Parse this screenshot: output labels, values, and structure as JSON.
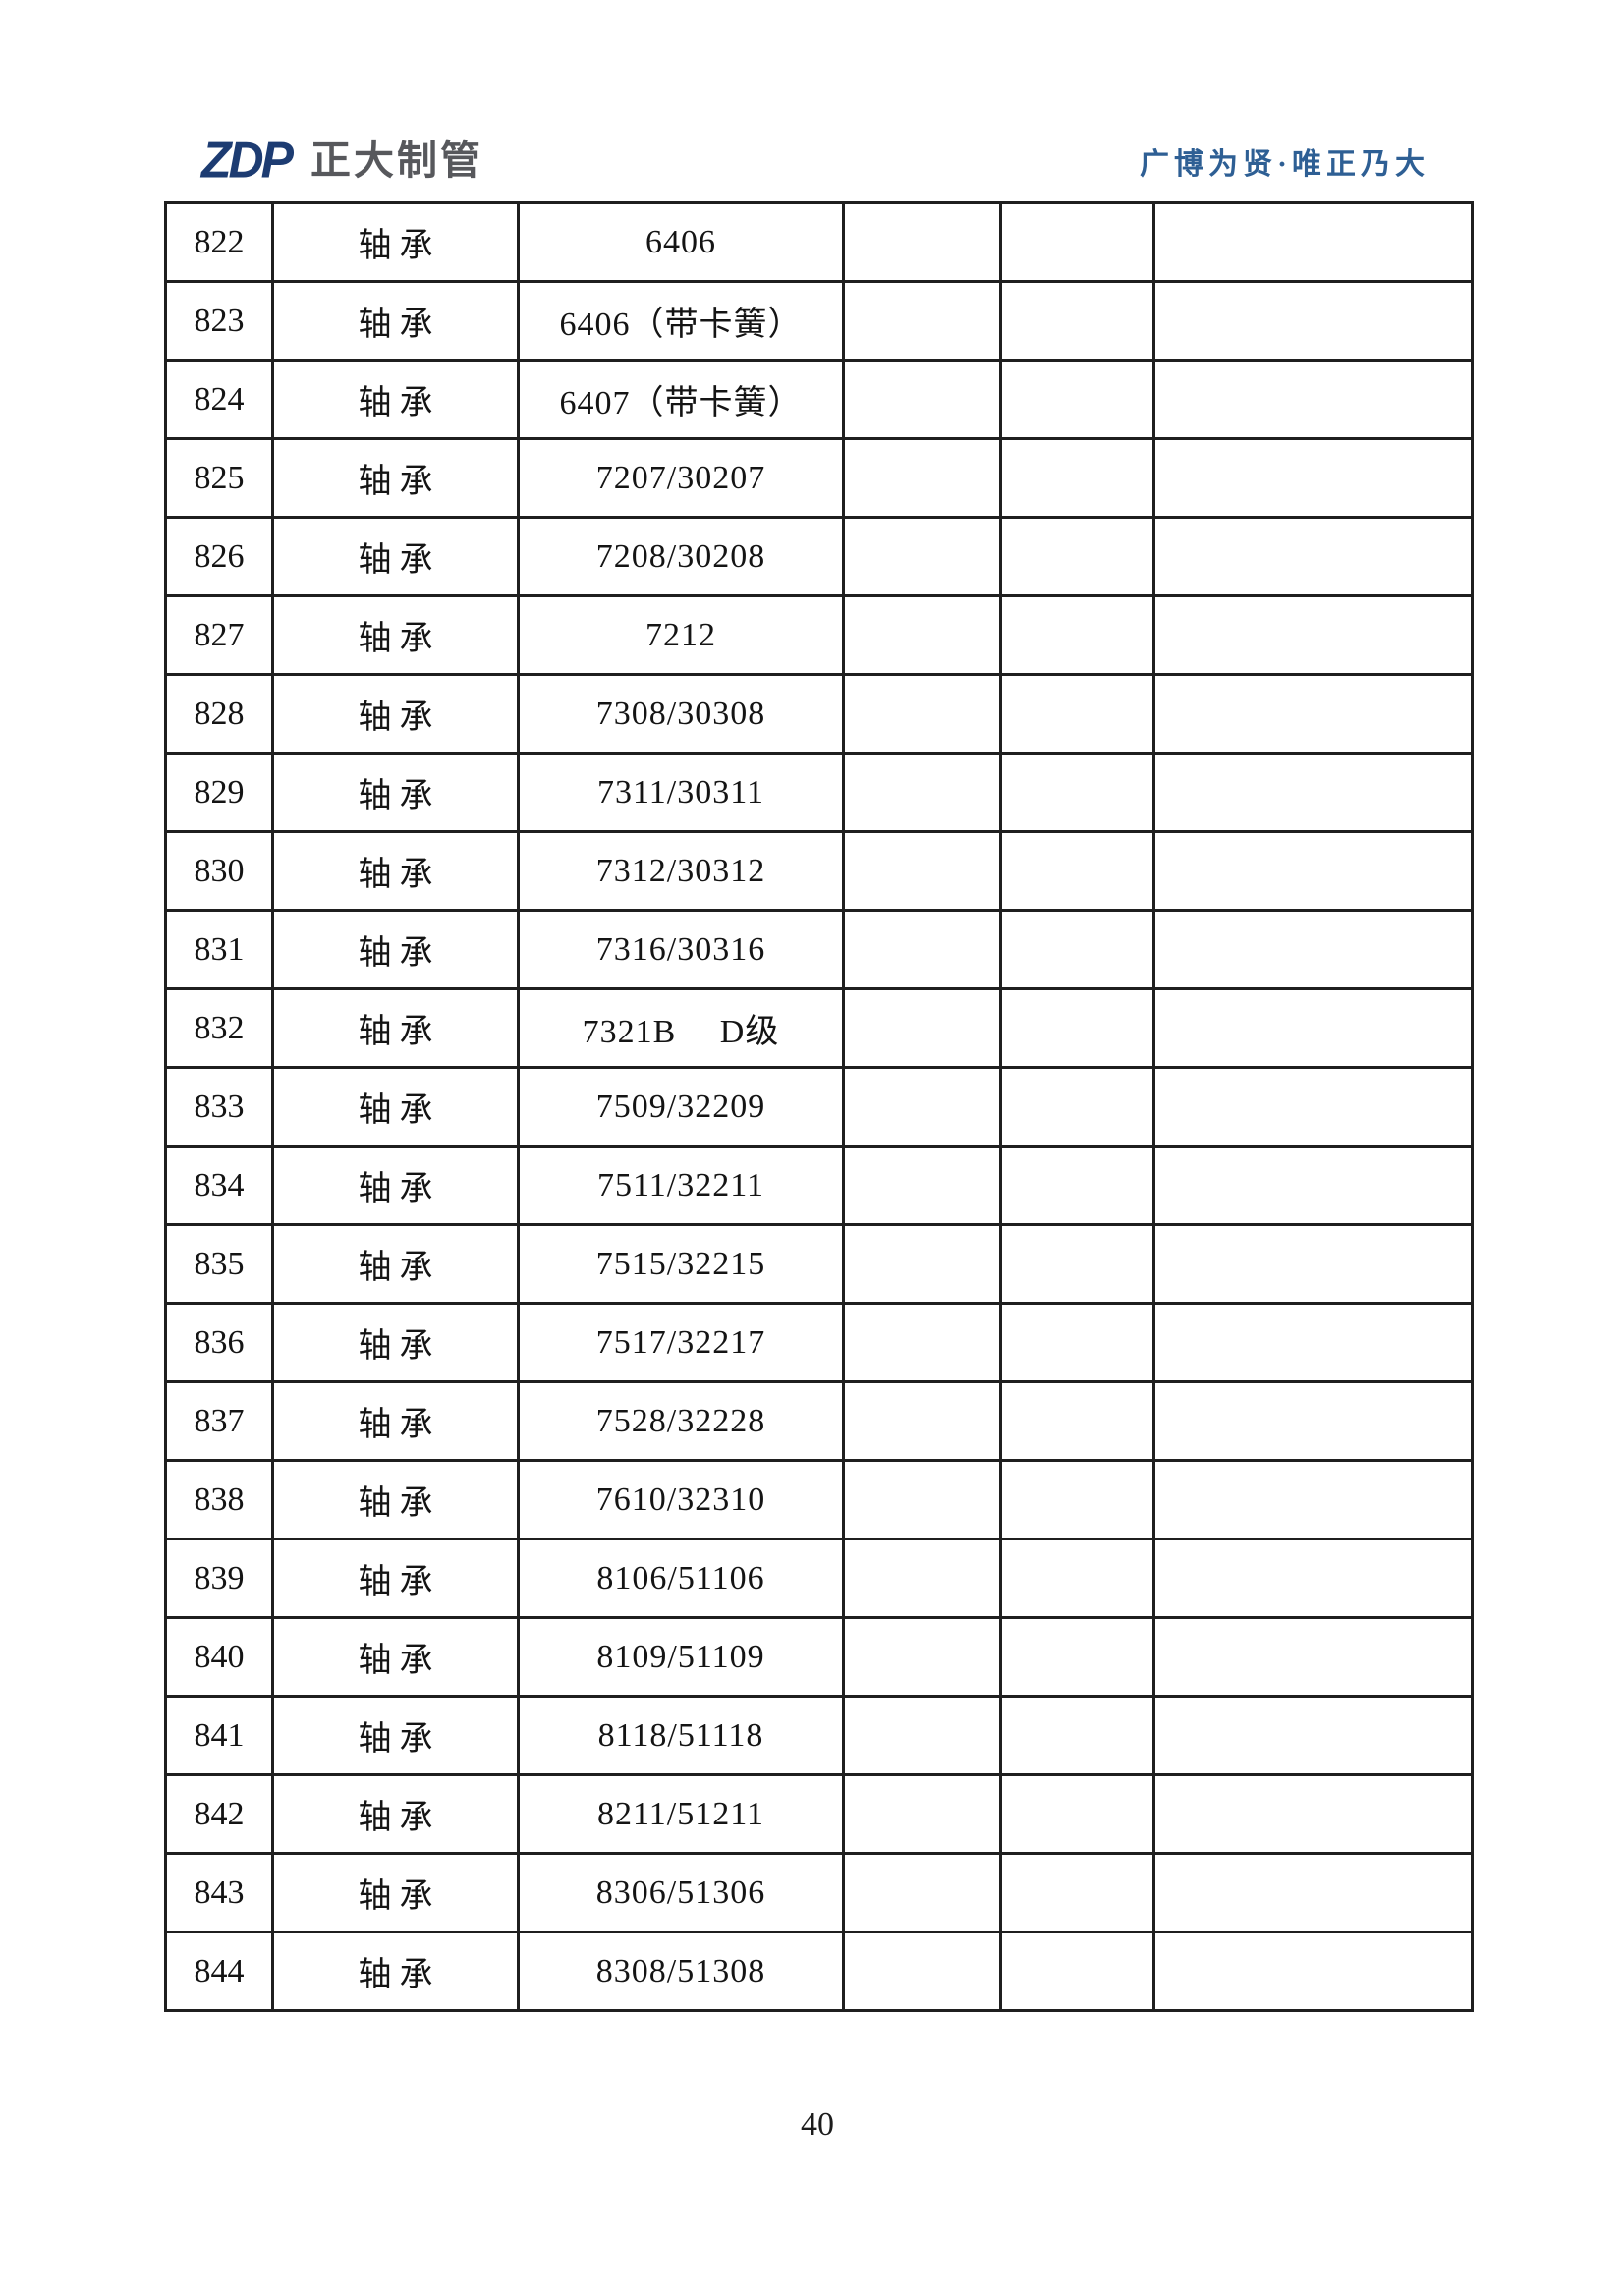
{
  "header": {
    "logo_text": "ZDP",
    "logo_company": "正大制管",
    "slogan": "广博为贤·唯正乃大"
  },
  "table": {
    "item_name_common": "轴承",
    "rows": [
      {
        "no": "822",
        "name": "轴承",
        "spec": "6406"
      },
      {
        "no": "823",
        "name": "轴承",
        "spec": "6406（带卡簧）"
      },
      {
        "no": "824",
        "name": "轴承",
        "spec": "6407（带卡簧）"
      },
      {
        "no": "825",
        "name": "轴承",
        "spec": "7207/30207"
      },
      {
        "no": "826",
        "name": "轴承",
        "spec": "7208/30208"
      },
      {
        "no": "827",
        "name": "轴承",
        "spec": "7212"
      },
      {
        "no": "828",
        "name": "轴承",
        "spec": "7308/30308"
      },
      {
        "no": "829",
        "name": "轴承",
        "spec": "7311/30311"
      },
      {
        "no": "830",
        "name": "轴承",
        "spec": "7312/30312"
      },
      {
        "no": "831",
        "name": "轴承",
        "spec": "7316/30316"
      },
      {
        "no": "832",
        "name": "轴承",
        "spec": "7321B　 D级"
      },
      {
        "no": "833",
        "name": "轴承",
        "spec": "7509/32209"
      },
      {
        "no": "834",
        "name": "轴承",
        "spec": "7511/32211"
      },
      {
        "no": "835",
        "name": "轴承",
        "spec": "7515/32215"
      },
      {
        "no": "836",
        "name": "轴承",
        "spec": "7517/32217"
      },
      {
        "no": "837",
        "name": "轴承",
        "spec": "7528/32228"
      },
      {
        "no": "838",
        "name": "轴承",
        "spec": "7610/32310"
      },
      {
        "no": "839",
        "name": "轴承",
        "spec": "8106/51106"
      },
      {
        "no": "840",
        "name": "轴承",
        "spec": "8109/51109"
      },
      {
        "no": "841",
        "name": "轴承",
        "spec": "8118/51118"
      },
      {
        "no": "842",
        "name": "轴承",
        "spec": "8211/51211"
      },
      {
        "no": "843",
        "name": "轴承",
        "spec": "8306/51306"
      },
      {
        "no": "844",
        "name": "轴承",
        "spec": "8308/51308"
      }
    ]
  },
  "footer": {
    "page_number": "40"
  }
}
